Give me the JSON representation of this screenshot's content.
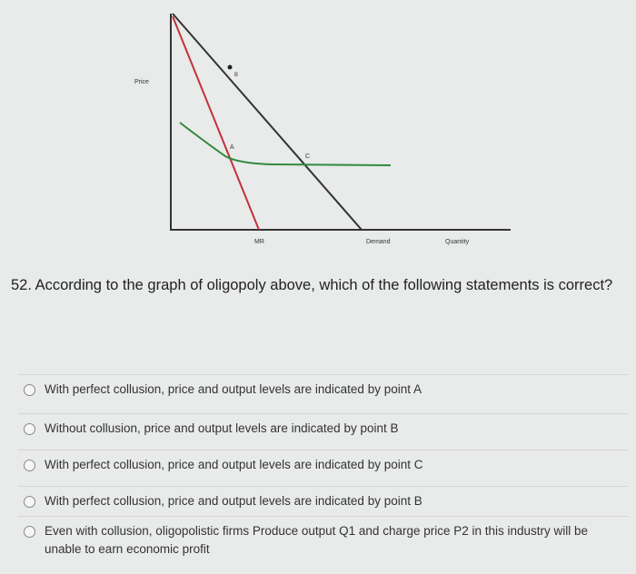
{
  "diagram": {
    "y_axis_label": "Price",
    "x_axis_label": "Quantity",
    "curves": [
      "MR",
      "Demand"
    ],
    "points": [
      "A",
      "B",
      "C"
    ]
  },
  "question": "52. According to the graph of oligopoly above, which of the following statements is correct?",
  "options": [
    "With perfect collusion, price and output levels are indicated by point A",
    "Without collusion, price and output levels are indicated by point B",
    "With perfect collusion, price and output levels are indicated by point C",
    "With perfect collusion, price and output levels are indicated by point B",
    "Even with collusion, oligopolistic firms Produce output Q1 and charge price P2 in this industry will be unable to earn economic profit"
  ]
}
